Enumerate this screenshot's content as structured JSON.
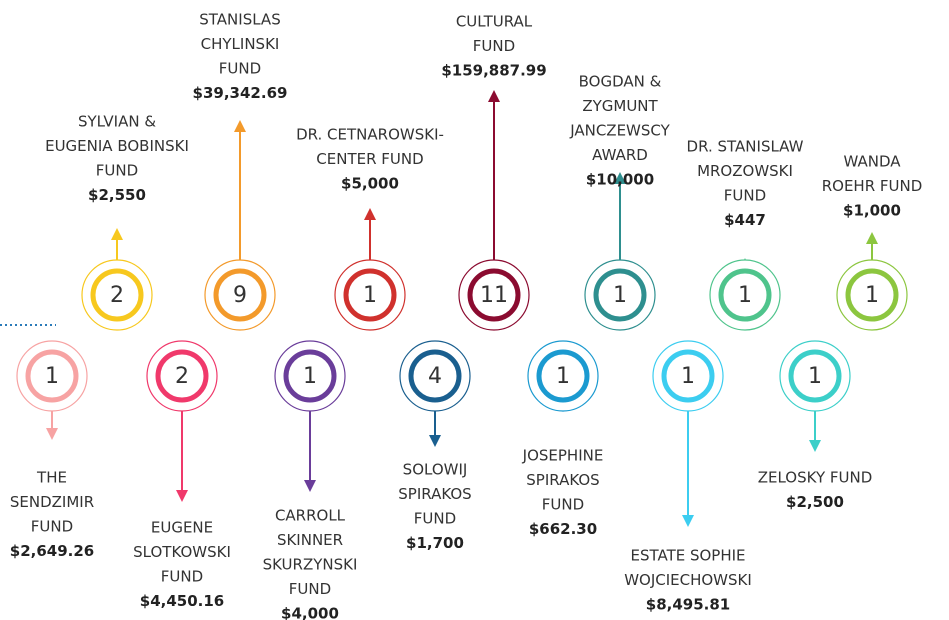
{
  "nodes": [
    {
      "count": 1,
      "lines": [
        "THE",
        "SENDZIMIR",
        "FUND"
      ],
      "amount": "$2,649.26",
      "color": "#f7a3a3"
    },
    {
      "count": 2,
      "lines": [
        "SYLVIAN &",
        "EUGENIA BOBINSKI",
        "FUND"
      ],
      "amount": "$2,550",
      "color": "#f7c81e"
    },
    {
      "count": 2,
      "lines": [
        "EUGENE",
        "SLOTKOWSKI",
        "FUND"
      ],
      "amount": "$4,450.16",
      "color": "#f0396b"
    },
    {
      "count": 9,
      "lines": [
        "STANISLAS",
        "CHYLINSKI",
        "FUND"
      ],
      "amount": "$39,342.69",
      "color": "#f39a2b"
    },
    {
      "count": 1,
      "lines": [
        "CARROLL",
        "SKINNER",
        "SKURZYNSKI",
        "FUND"
      ],
      "amount": "$4,000",
      "color": "#6a3d9a"
    },
    {
      "count": 1,
      "lines": [
        "DR. CETNAROWSKI-",
        "CENTER FUND"
      ],
      "amount": "$5,000",
      "color": "#d0312d"
    },
    {
      "count": 4,
      "lines": [
        "SOLOWIJ",
        "SPIRAKOS",
        "FUND"
      ],
      "amount": "$1,700",
      "color": "#1a5f8f"
    },
    {
      "count": 11,
      "lines": [
        "CULTURAL",
        "FUND"
      ],
      "amount": "$159,887.99",
      "color": "#8b0b30"
    },
    {
      "count": 1,
      "lines": [
        "JOSEPHINE",
        "SPIRAKOS",
        "FUND"
      ],
      "amount": "$662.30",
      "color": "#1b9ad0"
    },
    {
      "count": 1,
      "lines": [
        "BOGDAN &",
        "ZYGMUNT",
        "JANCZEWSCY",
        "AWARD"
      ],
      "amount": "$10,000",
      "color": "#2e8f8f"
    },
    {
      "count": 1,
      "lines": [
        "ESTATE SOPHIE",
        "WOJCIECHOWSKI"
      ],
      "amount": "$8,495.81",
      "color": "#3ccdf0"
    },
    {
      "count": 1,
      "lines": [
        "DR. STANISLAW",
        "MROZOWSKI",
        "FUND"
      ],
      "amount": "$447",
      "color": "#4fc48c"
    },
    {
      "count": 1,
      "lines": [
        "ZELOSKY FUND"
      ],
      "amount": "$2,500",
      "color": "#3ccfc9"
    },
    {
      "count": 1,
      "lines": [
        "WANDA",
        "ROEHR FUND"
      ],
      "amount": "$1,000",
      "color": "#8cc63f"
    }
  ]
}
